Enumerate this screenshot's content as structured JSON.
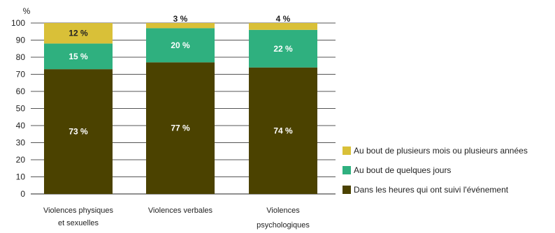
{
  "chart_data": {
    "type": "bar",
    "stacked": true,
    "ylabel": "%",
    "ylim": [
      0,
      100
    ],
    "yticks": [
      0,
      10,
      20,
      30,
      40,
      50,
      60,
      70,
      80,
      90,
      100
    ],
    "grid": true,
    "legend_position": "right",
    "categories": [
      [
        "Violences physiques",
        "et sexuelles"
      ],
      [
        "Violences verbales"
      ],
      [
        "Violences",
        "psychologiques"
      ]
    ],
    "series": [
      {
        "name": "Dans les heures qui ont suivi l'événement",
        "color": "#4b4200",
        "label_color": "#ffffff",
        "values": [
          73,
          77,
          74
        ],
        "labels": [
          "73 %",
          "77 %",
          "74 %"
        ]
      },
      {
        "name": "Au bout de quelques jours",
        "color": "#2fb07f",
        "label_color": "#ffffff",
        "values": [
          15,
          20,
          22
        ],
        "labels": [
          "15 %",
          "20 %",
          "22 %"
        ]
      },
      {
        "name": "Au bout de plusieurs mois ou plusieurs années",
        "color": "#d9c038",
        "label_color": "#222222",
        "values": [
          12,
          3,
          4
        ],
        "labels": [
          "12 %",
          "3 %",
          "4 %"
        ]
      }
    ],
    "legend_order": [
      2,
      1,
      0
    ]
  }
}
